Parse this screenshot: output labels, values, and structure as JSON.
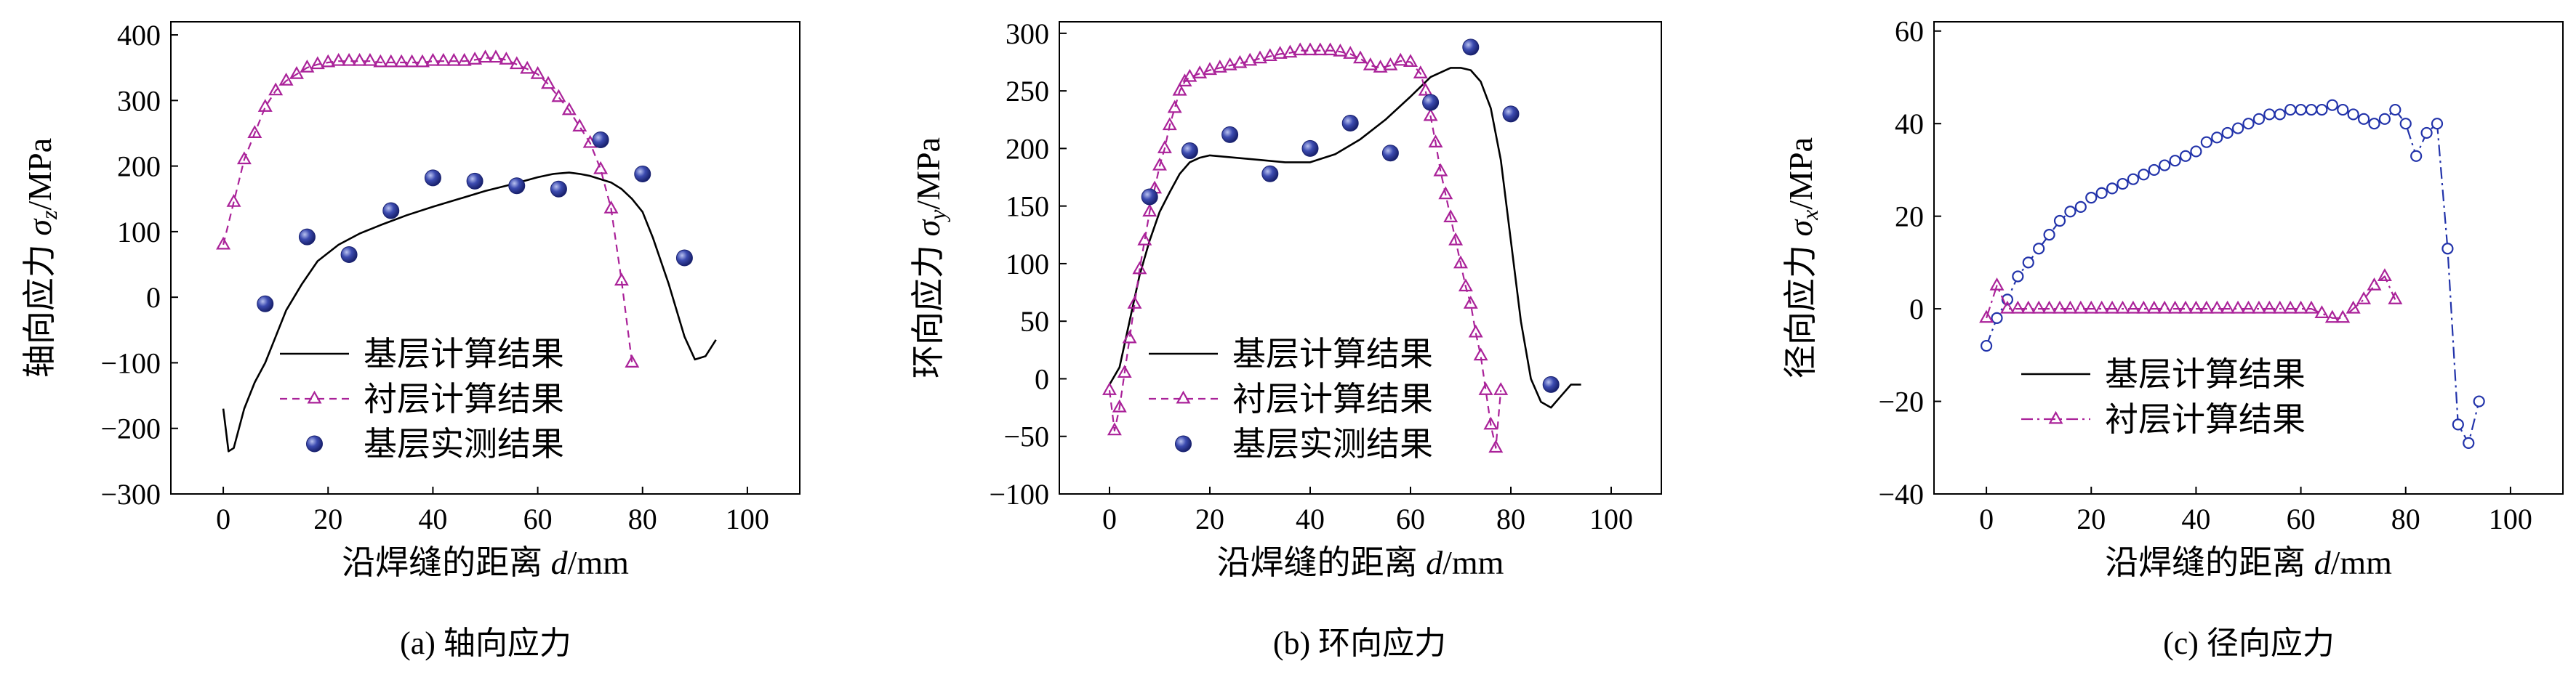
{
  "chart_data": [
    {
      "type": "line",
      "caption": "(a) 轴向应力",
      "xlabel": "沿焊缝的距离 d/mm",
      "xlabel_prefix": "沿焊缝的距离 ",
      "xlabel_var": "d",
      "xlabel_unit": "/mm",
      "ylabel": "轴向应力 σz/MPa",
      "ylabel_prefix": "轴向应力 ",
      "ylabel_var": "σ",
      "ylabel_sub": "z",
      "ylabel_unit": "/MPa",
      "xlim": [
        -10,
        110
      ],
      "ylim": [
        -300,
        420
      ],
      "xticks": [
        0,
        20,
        40,
        60,
        80,
        100
      ],
      "yticks": [
        -300,
        -200,
        -100,
        0,
        100,
        200,
        300,
        400
      ],
      "grid": false,
      "legend_position": "lower-left",
      "series": [
        {
          "name": "基层计算结果",
          "style": "solid",
          "color": "#000000",
          "x": [
            0,
            1,
            2,
            4,
            6,
            8,
            10,
            12,
            15,
            18,
            22,
            26,
            30,
            35,
            40,
            45,
            50,
            55,
            60,
            63,
            66,
            68,
            70,
            72,
            74,
            76,
            78,
            80,
            82,
            85,
            88,
            90,
            92,
            94
          ],
          "y": [
            -170,
            -235,
            -230,
            -170,
            -130,
            -100,
            -60,
            -20,
            20,
            55,
            80,
            97,
            110,
            125,
            138,
            150,
            162,
            172,
            183,
            188,
            190,
            188,
            185,
            180,
            175,
            165,
            150,
            130,
            90,
            20,
            -60,
            -95,
            -90,
            -65
          ]
        },
        {
          "name": "衬层计算结果",
          "style": "dashed",
          "marker": "triangle",
          "color": "#aa2299",
          "x": [
            0,
            2,
            4,
            6,
            8,
            10,
            12,
            14,
            16,
            18,
            20,
            22,
            24,
            26,
            28,
            30,
            32,
            34,
            36,
            38,
            40,
            42,
            44,
            46,
            48,
            50,
            52,
            54,
            56,
            58,
            60,
            62,
            64,
            66,
            68,
            70,
            72,
            74,
            76,
            78
          ],
          "y": [
            80,
            145,
            210,
            250,
            290,
            315,
            330,
            340,
            350,
            355,
            358,
            360,
            360,
            360,
            360,
            358,
            358,
            358,
            358,
            358,
            360,
            360,
            360,
            360,
            362,
            365,
            365,
            362,
            355,
            348,
            340,
            325,
            305,
            285,
            260,
            235,
            195,
            135,
            25,
            -100
          ]
        },
        {
          "name": "基层实测结果",
          "style": "points",
          "marker": "sphere",
          "color": "#2b3a9a",
          "x": [
            8,
            16,
            24,
            32,
            40,
            48,
            56,
            64,
            72,
            80,
            88
          ],
          "y": [
            -10,
            92,
            65,
            132,
            182,
            177,
            170,
            165,
            240,
            188,
            60
          ]
        }
      ]
    },
    {
      "type": "line",
      "caption": "(b) 环向应力",
      "xlabel": "沿焊缝的距离 d/mm",
      "xlabel_prefix": "沿焊缝的距离 ",
      "xlabel_var": "d",
      "xlabel_unit": "/mm",
      "ylabel": "环向应力 σy/MPa",
      "ylabel_prefix": "环向应力 ",
      "ylabel_var": "σ",
      "ylabel_sub": "y",
      "ylabel_unit": "/MPa",
      "xlim": [
        -10,
        110
      ],
      "ylim": [
        -100,
        310
      ],
      "xticks": [
        0,
        20,
        40,
        60,
        80,
        100
      ],
      "yticks": [
        -100,
        -50,
        0,
        50,
        100,
        150,
        200,
        250,
        300
      ],
      "grid": false,
      "legend_position": "lower-left",
      "series": [
        {
          "name": "基层计算结果",
          "style": "solid",
          "color": "#000000",
          "x": [
            0,
            2,
            4,
            6,
            8,
            10,
            12,
            14,
            16,
            18,
            20,
            25,
            30,
            35,
            40,
            45,
            50,
            55,
            60,
            64,
            68,
            70,
            72,
            74,
            76,
            78,
            80,
            82,
            84,
            86,
            88,
            90,
            92,
            94
          ],
          "y": [
            -5,
            10,
            50,
            90,
            120,
            145,
            162,
            178,
            188,
            192,
            194,
            192,
            190,
            188,
            188,
            195,
            208,
            225,
            245,
            262,
            270,
            270,
            268,
            258,
            235,
            190,
            120,
            50,
            0,
            -20,
            -25,
            -15,
            -5,
            -5
          ]
        },
        {
          "name": "衬层计算结果",
          "style": "dashed",
          "marker": "triangle",
          "color": "#aa2299",
          "x": [
            0,
            1,
            2,
            3,
            4,
            5,
            6,
            7,
            8,
            9,
            10,
            11,
            12,
            13,
            14,
            15,
            16,
            18,
            20,
            22,
            24,
            26,
            28,
            30,
            32,
            34,
            36,
            38,
            40,
            42,
            44,
            46,
            48,
            50,
            52,
            54,
            56,
            58,
            60,
            62,
            63,
            64,
            65,
            66,
            67,
            68,
            69,
            70,
            71,
            72,
            73,
            74,
            75,
            76,
            77,
            78
          ],
          "y": [
            -10,
            -45,
            -25,
            5,
            35,
            65,
            95,
            120,
            145,
            165,
            185,
            200,
            220,
            235,
            250,
            258,
            262,
            265,
            268,
            270,
            272,
            274,
            276,
            278,
            280,
            282,
            283,
            285,
            285,
            285,
            285,
            284,
            282,
            278,
            272,
            270,
            272,
            276,
            275,
            265,
            250,
            228,
            205,
            180,
            160,
            140,
            120,
            100,
            80,
            65,
            40,
            20,
            -10,
            -40,
            -60,
            -10
          ]
        },
        {
          "name": "基层实测结果",
          "style": "points",
          "marker": "sphere",
          "color": "#2b3a9a",
          "x": [
            8,
            16,
            24,
            32,
            40,
            48,
            56,
            64,
            72,
            80,
            88
          ],
          "y": [
            158,
            198,
            212,
            178,
            200,
            222,
            196,
            240,
            288,
            230,
            -5
          ]
        }
      ]
    },
    {
      "type": "line",
      "caption": "(c) 径向应力",
      "xlabel": "沿焊缝的距离 d/mm",
      "xlabel_prefix": "沿焊缝的距离 ",
      "xlabel_var": "d",
      "xlabel_unit": "/mm",
      "ylabel": "径向应力 σx/MPa",
      "ylabel_prefix": "径向应力 ",
      "ylabel_var": "σ",
      "ylabel_sub": "x",
      "ylabel_unit": "/MPa",
      "xlim": [
        -10,
        110
      ],
      "ylim": [
        -40,
        62
      ],
      "xticks": [
        0,
        20,
        40,
        60,
        80,
        100
      ],
      "yticks": [
        -40,
        -20,
        0,
        20,
        40,
        60
      ],
      "grid": false,
      "legend_position": "lower-left",
      "series": [
        {
          "name": "基层计算结果",
          "style": "dashdot",
          "marker": "circle-open",
          "color": "#2233aa",
          "legend_style": "solid",
          "legend_color": "#000000",
          "x": [
            0,
            2,
            4,
            6,
            8,
            10,
            12,
            14,
            16,
            18,
            20,
            22,
            24,
            26,
            28,
            30,
            32,
            34,
            36,
            38,
            40,
            42,
            44,
            46,
            48,
            50,
            52,
            54,
            56,
            58,
            60,
            62,
            64,
            66,
            68,
            70,
            72,
            74,
            76,
            78,
            80,
            82,
            84,
            86,
            88,
            90,
            92,
            94
          ],
          "y": [
            -8,
            -2,
            2,
            7,
            10,
            13,
            16,
            19,
            21,
            22,
            24,
            25,
            26,
            27,
            28,
            29,
            30,
            31,
            32,
            33,
            34,
            36,
            37,
            38,
            39,
            40,
            41,
            42,
            42,
            43,
            43,
            43,
            43,
            44,
            43,
            42,
            41,
            40,
            41,
            43,
            40,
            33,
            38,
            40,
            13,
            -25,
            -29,
            -20
          ]
        },
        {
          "name": "衬层计算结果",
          "style": "dashdot",
          "marker": "triangle",
          "color": "#aa2299",
          "x": [
            0,
            2,
            4,
            6,
            8,
            10,
            12,
            14,
            16,
            18,
            20,
            22,
            24,
            26,
            28,
            30,
            32,
            34,
            36,
            38,
            40,
            42,
            44,
            46,
            48,
            50,
            52,
            54,
            56,
            58,
            60,
            62,
            64,
            66,
            68,
            70,
            72,
            74,
            76,
            78
          ],
          "y": [
            -2,
            5,
            0,
            0,
            0,
            0,
            0,
            0,
            0,
            0,
            0,
            0,
            0,
            0,
            0,
            0,
            0,
            0,
            0,
            0,
            0,
            0,
            0,
            0,
            0,
            0,
            0,
            0,
            0,
            0,
            0,
            0,
            -1,
            -2,
            -2,
            0,
            2,
            5,
            7,
            2
          ]
        }
      ]
    }
  ]
}
